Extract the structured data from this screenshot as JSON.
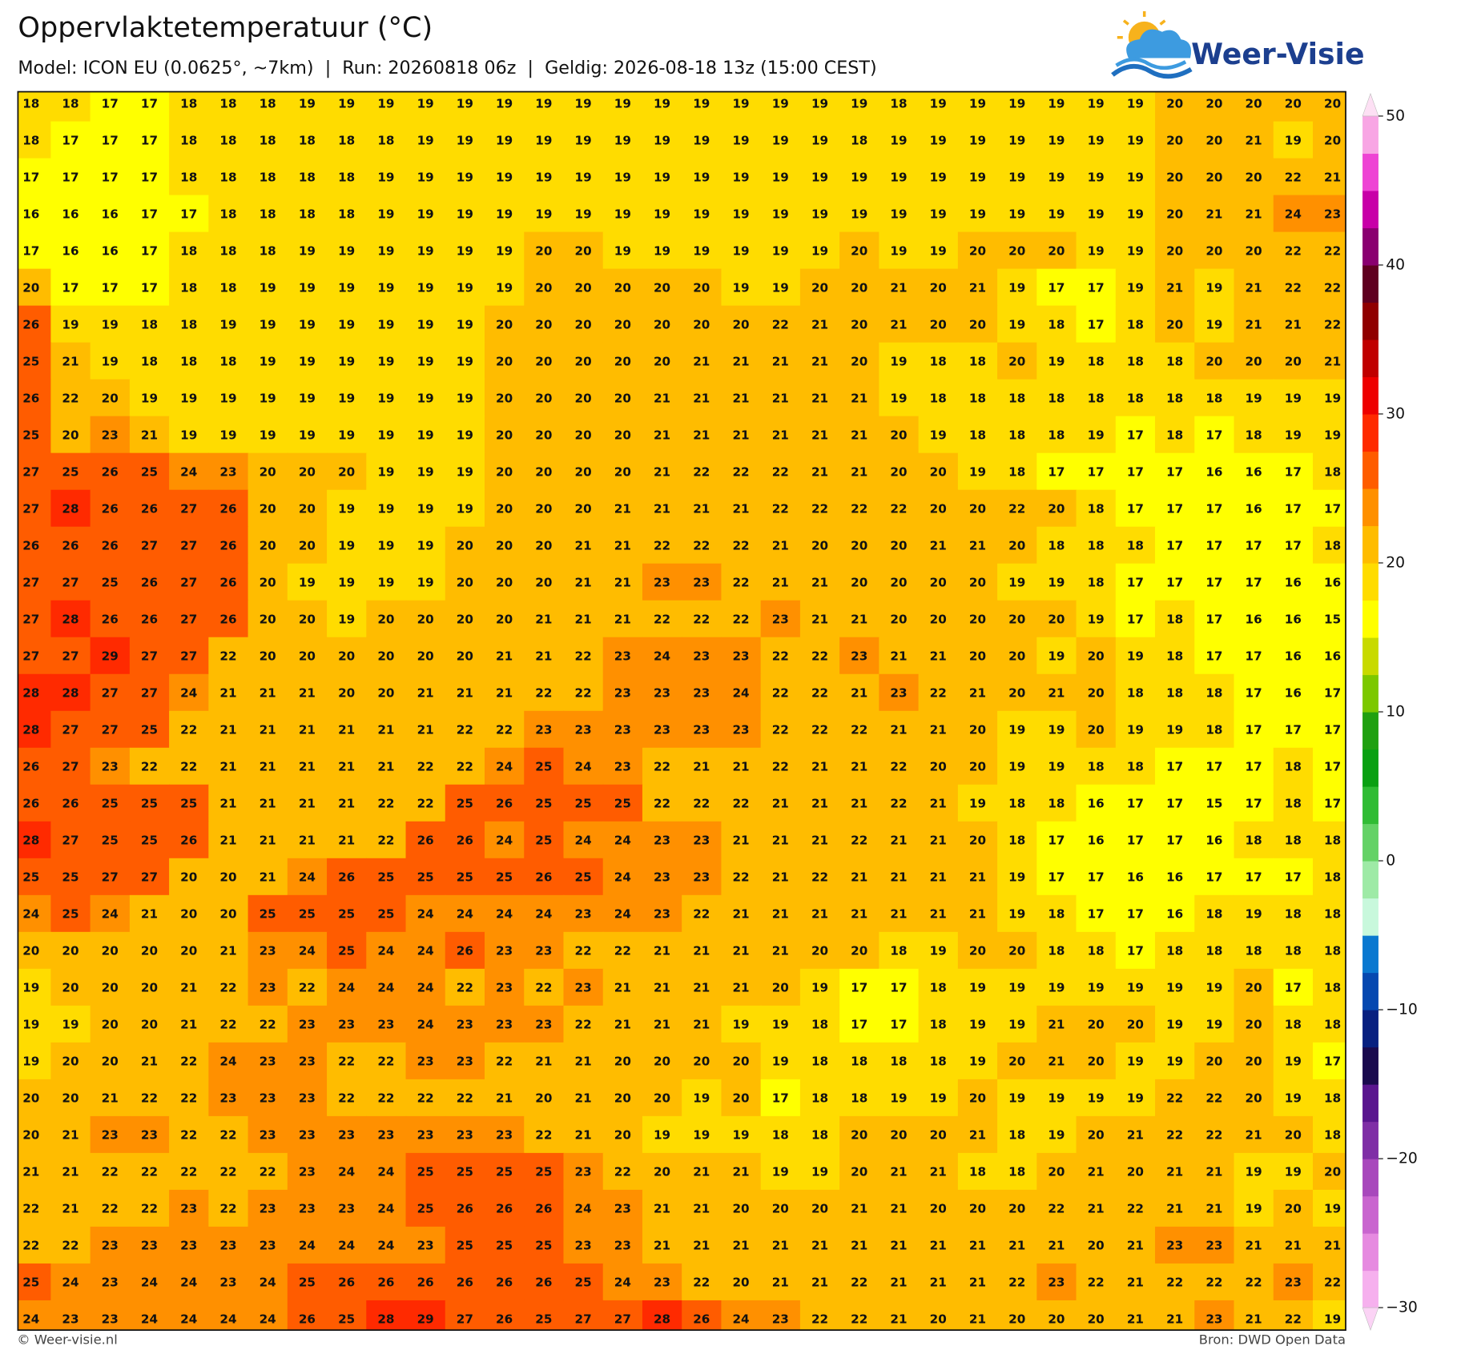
{
  "header": {
    "title": "Oppervlaktetemperatuur (°C)",
    "subtitle": "Model: ICON EU (0.0625°, ~7km)  |  Run: 20260818 06z  |  Geldig: 2026-08-18 13z (15:00 CEST)",
    "logo": "Weer-Visie"
  },
  "footer": {
    "left": "© Weer-visie.nl",
    "right": "Bron: DWD Open Data"
  },
  "colorbar": {
    "lim": [
      -30,
      50
    ],
    "ticks": [
      50,
      40,
      30,
      20,
      10,
      0,
      {
        "value": -10,
        "label": "−10"
      },
      {
        "value": -20,
        "label": "−20"
      },
      {
        "value": -30,
        "label": "−30"
      }
    ],
    "colors": [
      "#fdeafb",
      "#fbd3f5",
      "#f6b0ee",
      "#e68ae0",
      "#c965cf",
      "#a848bc",
      "#7f2ea6",
      "#5a168f",
      "#1a0a4e",
      "#082080",
      "#0648b0",
      "#0a78d0",
      "#c8f8dc",
      "#9eeaa6",
      "#64d266",
      "#30bc34",
      "#0aa012",
      "#20a010",
      "#7cc800",
      "#c8da00",
      "#ffff00",
      "#ffdc00",
      "#ffbc00",
      "#ff9000",
      "#ff5c00",
      "#ff2a00",
      "#ee0000",
      "#c00000",
      "#900000",
      "#600020",
      "#8a0070",
      "#c800a8",
      "#ee44d4",
      "#f8a6e4",
      "#fde0f4",
      "#fff4fc"
    ],
    "colors_note_free": true
  },
  "grid": [
    [
      18,
      18,
      17,
      17,
      18,
      18,
      18,
      19,
      19,
      19,
      19,
      19,
      19,
      19,
      19,
      19,
      19,
      19,
      19,
      19,
      19,
      19,
      18,
      19,
      19,
      19,
      19,
      19,
      19,
      20,
      20,
      20,
      20,
      20
    ],
    [
      18,
      17,
      17,
      17,
      18,
      18,
      18,
      18,
      18,
      18,
      19,
      19,
      19,
      19,
      19,
      19,
      19,
      19,
      19,
      19,
      19,
      18,
      19,
      19,
      19,
      19,
      19,
      19,
      19,
      20,
      20,
      21,
      19,
      20
    ],
    [
      17,
      17,
      17,
      17,
      18,
      18,
      18,
      18,
      18,
      19,
      19,
      19,
      19,
      19,
      19,
      19,
      19,
      19,
      19,
      19,
      19,
      19,
      19,
      19,
      19,
      19,
      19,
      19,
      19,
      20,
      20,
      20,
      22,
      21
    ],
    [
      16,
      16,
      16,
      17,
      17,
      18,
      18,
      18,
      18,
      19,
      19,
      19,
      19,
      19,
      19,
      19,
      19,
      19,
      19,
      19,
      19,
      19,
      19,
      19,
      19,
      19,
      19,
      19,
      19,
      20,
      21,
      21,
      24,
      23
    ],
    [
      17,
      16,
      16,
      17,
      18,
      18,
      18,
      19,
      19,
      19,
      19,
      19,
      19,
      20,
      20,
      19,
      19,
      19,
      19,
      19,
      19,
      20,
      19,
      19,
      20,
      20,
      20,
      19,
      19,
      20,
      20,
      20,
      22,
      22
    ],
    [
      20,
      17,
      17,
      17,
      18,
      18,
      19,
      19,
      19,
      19,
      19,
      19,
      19,
      20,
      20,
      20,
      20,
      20,
      19,
      19,
      20,
      20,
      21,
      20,
      21,
      19,
      17,
      17,
      19,
      21,
      19,
      21,
      22,
      22
    ],
    [
      26,
      19,
      19,
      18,
      18,
      19,
      19,
      19,
      19,
      19,
      19,
      19,
      20,
      20,
      20,
      20,
      20,
      20,
      20,
      22,
      21,
      20,
      21,
      20,
      20,
      19,
      18,
      17,
      18,
      20,
      19,
      21,
      21,
      22
    ],
    [
      25,
      21,
      19,
      18,
      18,
      18,
      19,
      19,
      19,
      19,
      19,
      19,
      20,
      20,
      20,
      20,
      20,
      21,
      21,
      21,
      21,
      20,
      19,
      18,
      18,
      20,
      19,
      18,
      18,
      18,
      20,
      20,
      20,
      21
    ],
    [
      26,
      22,
      20,
      19,
      19,
      19,
      19,
      19,
      19,
      19,
      19,
      19,
      20,
      20,
      20,
      20,
      21,
      21,
      21,
      21,
      21,
      21,
      19,
      18,
      18,
      18,
      18,
      18,
      18,
      18,
      18,
      19,
      19,
      19
    ],
    [
      25,
      20,
      23,
      21,
      19,
      19,
      19,
      19,
      19,
      19,
      19,
      19,
      20,
      20,
      20,
      20,
      21,
      21,
      21,
      21,
      21,
      21,
      20,
      19,
      18,
      18,
      18,
      19,
      17,
      18,
      17,
      18,
      19,
      19
    ],
    [
      27,
      25,
      26,
      25,
      24,
      23,
      20,
      20,
      20,
      19,
      19,
      19,
      20,
      20,
      20,
      20,
      21,
      22,
      22,
      22,
      21,
      21,
      20,
      20,
      19,
      18,
      17,
      17,
      17,
      17,
      16,
      16,
      17,
      18
    ],
    [
      27,
      28,
      26,
      26,
      27,
      26,
      20,
      20,
      19,
      19,
      19,
      19,
      20,
      20,
      20,
      21,
      21,
      21,
      21,
      22,
      22,
      22,
      22,
      20,
      20,
      22,
      20,
      18,
      17,
      17,
      17,
      16,
      17,
      17
    ],
    [
      26,
      26,
      26,
      27,
      27,
      26,
      20,
      20,
      19,
      19,
      19,
      20,
      20,
      20,
      21,
      21,
      22,
      22,
      22,
      21,
      20,
      20,
      20,
      21,
      21,
      20,
      18,
      18,
      18,
      17,
      17,
      17,
      17,
      18
    ],
    [
      27,
      27,
      25,
      26,
      27,
      26,
      20,
      19,
      19,
      19,
      19,
      20,
      20,
      20,
      21,
      21,
      23,
      23,
      22,
      21,
      21,
      20,
      20,
      20,
      20,
      19,
      19,
      18,
      17,
      17,
      17,
      17,
      16,
      16
    ],
    [
      27,
      28,
      26,
      26,
      27,
      26,
      20,
      20,
      19,
      20,
      20,
      20,
      20,
      21,
      21,
      21,
      22,
      22,
      22,
      23,
      21,
      21,
      20,
      20,
      20,
      20,
      20,
      19,
      17,
      18,
      17,
      16,
      16,
      15
    ],
    [
      27,
      27,
      29,
      27,
      27,
      22,
      20,
      20,
      20,
      20,
      20,
      20,
      21,
      21,
      22,
      23,
      24,
      23,
      23,
      22,
      22,
      23,
      21,
      21,
      20,
      20,
      19,
      20,
      19,
      18,
      17,
      17,
      16,
      16
    ],
    [
      28,
      28,
      27,
      27,
      24,
      21,
      21,
      21,
      20,
      20,
      21,
      21,
      21,
      22,
      22,
      23,
      23,
      23,
      24,
      22,
      22,
      21,
      23,
      22,
      21,
      20,
      21,
      20,
      18,
      18,
      18,
      17,
      16,
      17
    ],
    [
      28,
      27,
      27,
      25,
      22,
      21,
      21,
      21,
      21,
      21,
      21,
      22,
      22,
      23,
      23,
      23,
      23,
      23,
      23,
      22,
      22,
      22,
      21,
      21,
      20,
      19,
      19,
      20,
      19,
      19,
      18,
      17,
      17,
      17
    ],
    [
      26,
      27,
      23,
      22,
      22,
      21,
      21,
      21,
      21,
      21,
      22,
      22,
      24,
      25,
      24,
      23,
      22,
      21,
      21,
      22,
      21,
      21,
      22,
      20,
      20,
      19,
      19,
      18,
      18,
      17,
      17,
      17,
      18,
      17
    ],
    [
      26,
      26,
      25,
      25,
      25,
      21,
      21,
      21,
      21,
      22,
      22,
      25,
      26,
      25,
      25,
      25,
      22,
      22,
      22,
      21,
      21,
      21,
      22,
      21,
      19,
      18,
      18,
      16,
      17,
      17,
      15,
      17,
      18,
      17
    ],
    [
      28,
      27,
      25,
      25,
      26,
      21,
      21,
      21,
      21,
      22,
      26,
      26,
      24,
      25,
      24,
      24,
      23,
      23,
      21,
      21,
      21,
      22,
      21,
      21,
      20,
      18,
      17,
      16,
      17,
      17,
      16,
      18,
      18,
      18
    ],
    [
      25,
      25,
      27,
      27,
      20,
      20,
      21,
      24,
      26,
      25,
      25,
      25,
      25,
      26,
      25,
      24,
      23,
      23,
      22,
      21,
      22,
      21,
      21,
      21,
      21,
      19,
      17,
      17,
      16,
      16,
      17,
      17,
      17,
      18
    ],
    [
      24,
      25,
      24,
      21,
      20,
      20,
      25,
      25,
      25,
      25,
      24,
      24,
      24,
      24,
      23,
      24,
      23,
      22,
      21,
      21,
      21,
      21,
      21,
      21,
      21,
      19,
      18,
      17,
      17,
      16,
      18,
      19,
      18,
      18
    ],
    [
      20,
      20,
      20,
      20,
      20,
      21,
      23,
      24,
      25,
      24,
      24,
      26,
      23,
      23,
      22,
      22,
      21,
      21,
      21,
      21,
      20,
      20,
      18,
      19,
      20,
      20,
      18,
      18,
      17,
      18,
      18,
      18,
      18,
      18
    ],
    [
      19,
      20,
      20,
      20,
      21,
      22,
      23,
      22,
      24,
      24,
      24,
      22,
      23,
      22,
      23,
      21,
      21,
      21,
      21,
      20,
      19,
      17,
      17,
      18,
      19,
      19,
      19,
      19,
      19,
      19,
      19,
      20,
      17,
      18
    ],
    [
      19,
      19,
      20,
      20,
      21,
      22,
      22,
      23,
      23,
      23,
      24,
      23,
      23,
      23,
      22,
      21,
      21,
      21,
      19,
      19,
      18,
      17,
      17,
      18,
      19,
      19,
      21,
      20,
      20,
      19,
      19,
      20,
      18,
      18
    ],
    [
      19,
      20,
      20,
      21,
      22,
      24,
      23,
      23,
      22,
      22,
      23,
      23,
      22,
      21,
      21,
      20,
      20,
      20,
      20,
      19,
      18,
      18,
      18,
      18,
      19,
      20,
      21,
      20,
      19,
      19,
      20,
      20,
      19,
      17
    ],
    [
      20,
      20,
      21,
      22,
      22,
      23,
      23,
      23,
      22,
      22,
      22,
      22,
      21,
      20,
      21,
      20,
      20,
      19,
      20,
      17,
      18,
      18,
      19,
      19,
      20,
      19,
      19,
      19,
      19,
      22,
      22,
      20,
      19,
      18
    ],
    [
      20,
      21,
      23,
      23,
      22,
      22,
      23,
      23,
      23,
      23,
      23,
      23,
      23,
      22,
      21,
      20,
      19,
      19,
      19,
      18,
      18,
      20,
      20,
      20,
      21,
      18,
      19,
      20,
      21,
      22,
      22,
      21,
      20,
      18
    ],
    [
      21,
      21,
      22,
      22,
      22,
      22,
      22,
      23,
      24,
      24,
      25,
      25,
      25,
      25,
      23,
      22,
      20,
      21,
      21,
      19,
      19,
      20,
      21,
      21,
      18,
      18,
      20,
      21,
      20,
      21,
      21,
      19,
      19,
      20
    ],
    [
      22,
      21,
      22,
      22,
      23,
      22,
      23,
      23,
      23,
      24,
      25,
      26,
      26,
      26,
      24,
      23,
      21,
      21,
      20,
      20,
      20,
      21,
      21,
      20,
      20,
      20,
      22,
      21,
      22,
      21,
      21,
      19,
      20,
      19
    ],
    [
      22,
      22,
      23,
      23,
      23,
      23,
      23,
      24,
      24,
      24,
      23,
      25,
      25,
      25,
      23,
      23,
      21,
      21,
      21,
      21,
      21,
      21,
      21,
      21,
      21,
      21,
      21,
      20,
      21,
      23,
      23,
      21,
      21,
      21
    ],
    [
      25,
      24,
      23,
      24,
      24,
      23,
      24,
      25,
      26,
      26,
      26,
      26,
      26,
      26,
      25,
      24,
      23,
      22,
      20,
      21,
      21,
      22,
      21,
      21,
      21,
      22,
      23,
      22,
      21,
      22,
      22,
      22,
      23,
      22
    ],
    [
      24,
      23,
      23,
      24,
      24,
      24,
      24,
      26,
      25,
      28,
      29,
      27,
      26,
      25,
      27,
      27,
      28,
      26,
      24,
      23,
      22,
      22,
      21,
      20,
      21,
      20,
      20,
      20,
      21,
      21,
      23,
      21,
      22,
      19
    ]
  ]
}
